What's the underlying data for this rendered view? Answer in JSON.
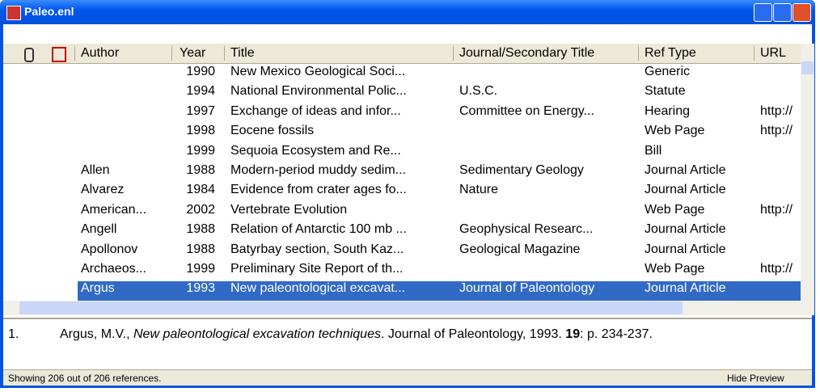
{
  "window": {
    "title": "Paleo.enl"
  },
  "table": {
    "columns": [
      "Author",
      "Year",
      "Title",
      "Journal/Secondary Title",
      "Ref Type",
      "URL"
    ],
    "rows": [
      [
        null,
        "1990",
        "New Mexico Geological Soci...",
        null,
        "Generic",
        null
      ],
      [
        null,
        "1994",
        "National Environmental Polic...",
        "U.S.C.",
        "Statute",
        null
      ],
      [
        null,
        "1997",
        "Exchange of ideas and infor...",
        "Committee on Energy...",
        "Hearing",
        "http://"
      ],
      [
        null,
        "1998",
        "Eocene fossils",
        null,
        "Web Page",
        "http://"
      ],
      [
        null,
        "1999",
        "Sequoia Ecosystem and Re...",
        null,
        "Bill",
        null
      ],
      [
        "Allen",
        "1988",
        "Modern-period muddy sedim...",
        "Sedimentary Geology",
        "Journal Article",
        null
      ],
      [
        "Alvarez",
        "1984",
        "Evidence from crater ages fo...",
        "Nature",
        "Journal Article",
        null
      ],
      [
        "American...",
        "2002",
        "Vertebrate Evolution",
        null,
        "Web Page",
        "http://"
      ],
      [
        "Angell",
        "1988",
        "Relation of Antarctic 100 mb ...",
        "Geophysical Researc...",
        "Journal Article",
        null
      ],
      [
        "Apollonov",
        "1988",
        "Batyrbay section, South Kaz...",
        "Geological Magazine",
        "Journal Article",
        null
      ],
      [
        "Archaeos...",
        "1999",
        "Preliminary Site Report of th...",
        null,
        "Web Page",
        "http://"
      ],
      [
        "Argus",
        "1993",
        "New paleontological excavat...",
        "Journal of Paleontology",
        "Journal Article",
        null
      ]
    ],
    "selected_row": 11
  },
  "preview": {
    "number": "1.",
    "authors": "Argus, M.V., ",
    "title": "New paleontological excavation techniques",
    "source": ". Journal of Paleontology, 1993. ",
    "volume": "19",
    "pages": ": p. 234-237."
  },
  "status": {
    "text": "Showing 206 out of 206 references.",
    "button": "Hide Preview"
  }
}
